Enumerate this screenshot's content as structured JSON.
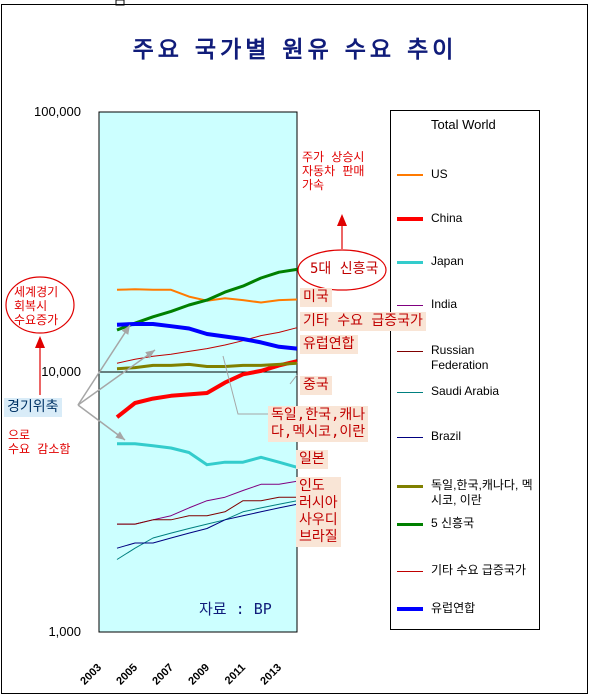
{
  "title": "주요 국가별 원유 수요 추이",
  "chart_data": {
    "type": "line",
    "x": [
      2004,
      2005,
      2006,
      2007,
      2008,
      2009,
      2010,
      2011,
      2012,
      2013,
      2014
    ],
    "xticks": [
      "2003",
      "2005",
      "2007",
      "2009",
      "2011",
      "2013"
    ],
    "yticks": [
      "1,000",
      "10,000",
      "100,000"
    ],
    "yscale": "log",
    "ylim": [
      1000,
      100000
    ],
    "legend_title": "Total World",
    "legend_position": "right",
    "series": [
      {
        "name": "US",
        "color": "#ff7a00",
        "width": 2,
        "values": [
          20700,
          20800,
          20700,
          20700,
          19500,
          18800,
          19200,
          18900,
          18500,
          18900,
          19000
        ]
      },
      {
        "name": "China",
        "color": "#ff0000",
        "width": 4,
        "values": [
          6700,
          7600,
          7900,
          8100,
          8200,
          8300,
          9100,
          9800,
          10100,
          10600,
          11000
        ]
      },
      {
        "name": "Japan",
        "color": "#33cccc",
        "width": 3,
        "values": [
          5300,
          5300,
          5200,
          5100,
          4900,
          4400,
          4500,
          4500,
          4700,
          4500,
          4300
        ]
      },
      {
        "name": "India",
        "color": "#800080",
        "width": 1,
        "values": [
          2600,
          2600,
          2700,
          2800,
          3000,
          3200,
          3300,
          3500,
          3700,
          3700,
          3800
        ]
      },
      {
        "name": "Russian Federation",
        "color": "#800000",
        "width": 1,
        "values": [
          2600,
          2600,
          2700,
          2700,
          2800,
          2800,
          2900,
          3200,
          3200,
          3300,
          3300
        ]
      },
      {
        "name": "Saudi Arabia",
        "color": "#008080",
        "width": 1,
        "values": [
          1900,
          2100,
          2300,
          2400,
          2500,
          2600,
          2700,
          2900,
          3000,
          3100,
          3200
        ]
      },
      {
        "name": "Brazil",
        "color": "#000080",
        "width": 1,
        "values": [
          2100,
          2200,
          2200,
          2300,
          2400,
          2500,
          2700,
          2800,
          2900,
          3000,
          3100
        ]
      },
      {
        "name": "독일,한국,캐나다, 멕시코, 이란",
        "color": "#808000",
        "width": 3,
        "values": [
          10300,
          10400,
          10600,
          10600,
          10700,
          10500,
          10500,
          10600,
          10600,
          10700,
          10800
        ]
      },
      {
        "name": "5 신흥국",
        "color": "#008000",
        "width": 3,
        "values": [
          14500,
          15400,
          16300,
          17100,
          18100,
          18900,
          20300,
          21400,
          23000,
          24200,
          24800
        ]
      },
      {
        "name": "기타 수요 급증국가",
        "color": "#c00000",
        "width": 1,
        "values": [
          10800,
          11200,
          11500,
          11700,
          12000,
          12300,
          12700,
          13200,
          13800,
          14200,
          14800
        ]
      },
      {
        "name": "유럽연합",
        "color": "#0000ff",
        "width": 4,
        "values": [
          15200,
          15300,
          15300,
          15000,
          14700,
          14000,
          13700,
          13400,
          13000,
          12500,
          12300
        ]
      }
    ]
  },
  "callouts": {
    "emerging5": "5대 신흥국",
    "usa": "미국",
    "other": "기타 수요 급증국가",
    "eu": "유럽연합",
    "china": "중국",
    "group": "독일,한국,캐나\n다,멕시코,이란",
    "japan": "일본",
    "smallgroup": "인도\n러시아\n사우디\n브라질",
    "recession": "경기위축",
    "source": "자료 : BP"
  },
  "notes": {
    "top": "주가 상승시\n자동차 판매\n가속",
    "recovery": "세계경기\n회복시\n수요증가",
    "decline": "으로\n수요 감소함"
  }
}
